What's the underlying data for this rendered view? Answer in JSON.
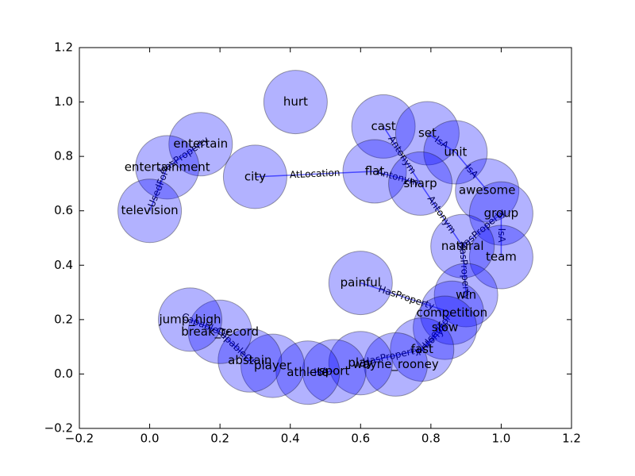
{
  "chart_data": {
    "type": "network",
    "color": "#0000ff",
    "edge_color": "#0000ff",
    "xlim": [
      -0.2,
      1.2
    ],
    "ylim": [
      -0.2,
      1.2
    ],
    "xticks": [
      {
        "value": -0.2,
        "label": "−0.2"
      },
      {
        "value": 0,
        "label": "0.0"
      },
      {
        "value": 0.2,
        "label": "0.2"
      },
      {
        "value": 0.4,
        "label": "0.4"
      },
      {
        "value": 0.6,
        "label": "0.6"
      },
      {
        "value": 0.8,
        "label": "0.8"
      },
      {
        "value": 1,
        "label": "1.0"
      },
      {
        "value": 1.2,
        "label": "1.2"
      }
    ],
    "yticks": [
      {
        "value": -0.2,
        "label": "−0.2"
      },
      {
        "value": 0,
        "label": "0.0"
      },
      {
        "value": 0.2,
        "label": "0.2"
      },
      {
        "value": 0.4,
        "label": "0.4"
      },
      {
        "value": 0.6,
        "label": "0.6"
      },
      {
        "value": 0.8,
        "label": "0.8"
      },
      {
        "value": 1,
        "label": "1.0"
      },
      {
        "value": 1.2,
        "label": "1.2"
      }
    ],
    "edges": [
      {
        "label": "AtLocation",
        "x": [
          0.3,
          0.64
        ],
        "y": [
          0.725,
          0.745
        ]
      },
      {
        "label": "UsedFor",
        "x": [
          0.05,
          0
        ],
        "y": [
          0.76,
          0.6
        ]
      },
      {
        "label": "HasProperty",
        "x": [
          0.145,
          0.05
        ],
        "y": [
          0.845,
          0.76
        ]
      },
      {
        "label": "Antonym",
        "x": [
          0.665,
          0.77
        ],
        "y": [
          0.91,
          0.7
        ]
      },
      {
        "label": "Antonym",
        "x": [
          0.64,
          0.77
        ],
        "y": [
          0.745,
          0.7
        ]
      },
      {
        "label": "Antonym",
        "x": [
          0.77,
          0.89
        ],
        "y": [
          0.7,
          0.47
        ]
      },
      {
        "label": "IsA",
        "x": [
          0.79,
          0.87
        ],
        "y": [
          0.885,
          0.815
        ]
      },
      {
        "label": "IsA",
        "x": [
          0.87,
          0.96
        ],
        "y": [
          0.815,
          0.675
        ]
      },
      {
        "label": "IsA",
        "x": [
          1.0,
          1.0
        ],
        "y": [
          0.59,
          0.43
        ]
      },
      {
        "label": "HasProperty",
        "x": [
          0.89,
          1.0
        ],
        "y": [
          0.47,
          0.59
        ]
      },
      {
        "label": "HasProperty",
        "x": [
          0.9,
          0.89
        ],
        "y": [
          0.29,
          0.47
        ]
      },
      {
        "label": "HasProperty",
        "x": [
          0.6,
          0.86
        ],
        "y": [
          0.335,
          0.225
        ]
      },
      {
        "label": "UsedFor",
        "x": [
          0.775,
          0.86
        ],
        "y": [
          0.09,
          0.225
        ]
      },
      {
        "label": "Antonym",
        "x": [
          0.775,
          0.84
        ],
        "y": [
          0.09,
          0.17
        ]
      },
      {
        "label": "HasProperty",
        "x": [
          0.6,
          0.775
        ],
        "y": [
          0.04,
          0.09
        ]
      },
      {
        "label": "IsA",
        "x": [
          0.525,
          0.45
        ],
        "y": [
          0.01,
          0.005
        ]
      },
      {
        "label": "CapableOf",
        "x": [
          0.2,
          0.285
        ],
        "y": [
          0.155,
          0.05
        ]
      },
      {
        "label": "CapableOf",
        "x": [
          0.115,
          0.2
        ],
        "y": [
          0.2,
          0.155
        ]
      }
    ],
    "nodes": [
      {
        "label": "hurt",
        "x": 0.415,
        "y": 1.0
      },
      {
        "label": "entertain",
        "x": 0.145,
        "y": 0.845
      },
      {
        "label": "entertainment",
        "x": 0.05,
        "y": 0.76
      },
      {
        "label": "television",
        "x": 0,
        "y": 0.6
      },
      {
        "label": "city",
        "x": 0.3,
        "y": 0.725
      },
      {
        "label": "cast",
        "x": 0.665,
        "y": 0.91
      },
      {
        "label": "set",
        "x": 0.79,
        "y": 0.885
      },
      {
        "label": "unit",
        "x": 0.87,
        "y": 0.815
      },
      {
        "label": "flat",
        "x": 0.64,
        "y": 0.745
      },
      {
        "label": "sharp",
        "x": 0.77,
        "y": 0.7
      },
      {
        "label": "awesome",
        "x": 0.96,
        "y": 0.675
      },
      {
        "label": "group",
        "x": 1.0,
        "y": 0.59
      },
      {
        "label": "team",
        "x": 1.0,
        "y": 0.43
      },
      {
        "label": "natural",
        "x": 0.89,
        "y": 0.47
      },
      {
        "label": "painful",
        "x": 0.6,
        "y": 0.335
      },
      {
        "label": "win",
        "x": 0.9,
        "y": 0.29
      },
      {
        "label": "competition",
        "x": 0.86,
        "y": 0.225
      },
      {
        "label": "slow",
        "x": 0.84,
        "y": 0.17
      },
      {
        "label": "fast",
        "x": 0.775,
        "y": 0.09
      },
      {
        "label": "wayne_rooney",
        "x": 0.7,
        "y": 0.035
      },
      {
        "label": "play",
        "x": 0.6,
        "y": 0.04
      },
      {
        "label": "sport",
        "x": 0.525,
        "y": 0.01
      },
      {
        "label": "athlete",
        "x": 0.45,
        "y": 0.005
      },
      {
        "label": "player",
        "x": 0.35,
        "y": 0.03
      },
      {
        "label": "abstain",
        "x": 0.285,
        "y": 0.05
      },
      {
        "label": "break_record",
        "x": 0.2,
        "y": 0.155
      },
      {
        "label": "jump_high",
        "x": 0.115,
        "y": 0.2
      }
    ]
  }
}
